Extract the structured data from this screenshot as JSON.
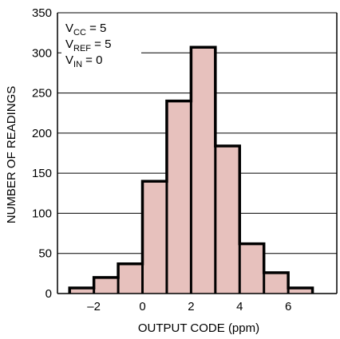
{
  "chart_data": {
    "type": "bar",
    "title": "",
    "xlabel": "OUTPUT CODE (ppm)",
    "ylabel": "NUMBER OF READINGS",
    "xlim": [
      -3.5,
      8
    ],
    "ylim": [
      0,
      350
    ],
    "x_ticks": [
      -2,
      0,
      2,
      4,
      6
    ],
    "x_tick_labels": [
      "–2",
      "0",
      "2",
      "4",
      "6"
    ],
    "y_ticks": [
      0,
      50,
      100,
      150,
      200,
      250,
      300,
      350
    ],
    "grid": "horizontal",
    "bin_edges": [
      -3,
      -2,
      -1,
      0,
      1,
      2,
      3,
      4,
      5,
      6,
      7
    ],
    "values": [
      7,
      20,
      37,
      140,
      240,
      307,
      184,
      62,
      26,
      7
    ],
    "bar_color": "#e7c1bd",
    "annotation": [
      {
        "main": "V",
        "sub": "CC",
        "rest": " = 5"
      },
      {
        "main": "V",
        "sub": "REF",
        "rest": " = 5"
      },
      {
        "main": "V",
        "sub": "IN",
        "rest": " = 0"
      }
    ]
  }
}
